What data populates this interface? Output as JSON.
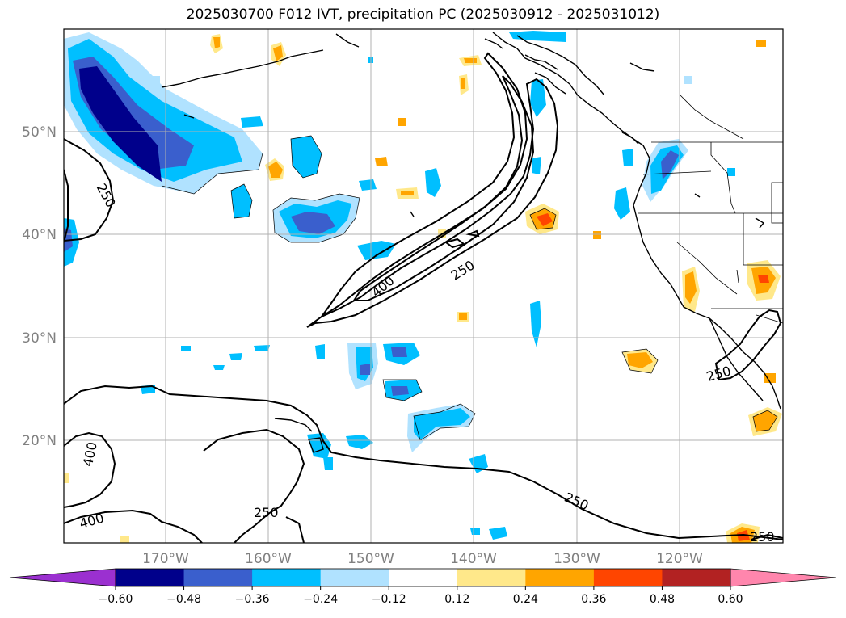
{
  "title": "2025030700 F012 IVT, precipitation PC (2025030912 - 2025031012)",
  "map": {
    "lon_labels": [
      "170°W",
      "160°W",
      "150°W",
      "140°W",
      "130°W",
      "120°W"
    ],
    "lat_labels": [
      "50°N",
      "40°N",
      "30°N",
      "20°N"
    ],
    "ivt_contour_labels": [
      "250",
      "400",
      "250",
      "250",
      "400",
      "400",
      "250",
      "250"
    ],
    "grid": true
  },
  "colorbar": {
    "ticks": [
      "−0.60",
      "−0.48",
      "−0.36",
      "−0.24",
      "−0.12",
      "0.12",
      "0.24",
      "0.36",
      "0.48",
      "0.60"
    ],
    "colors": [
      "#9b30d0",
      "#00008b",
      "#3a5fcd",
      "#00bfff",
      "#b0e2ff",
      "#ffffff",
      "#ffe88a",
      "#ffa500",
      "#ff4500",
      "#b22222",
      "#ff86ad"
    ]
  }
}
